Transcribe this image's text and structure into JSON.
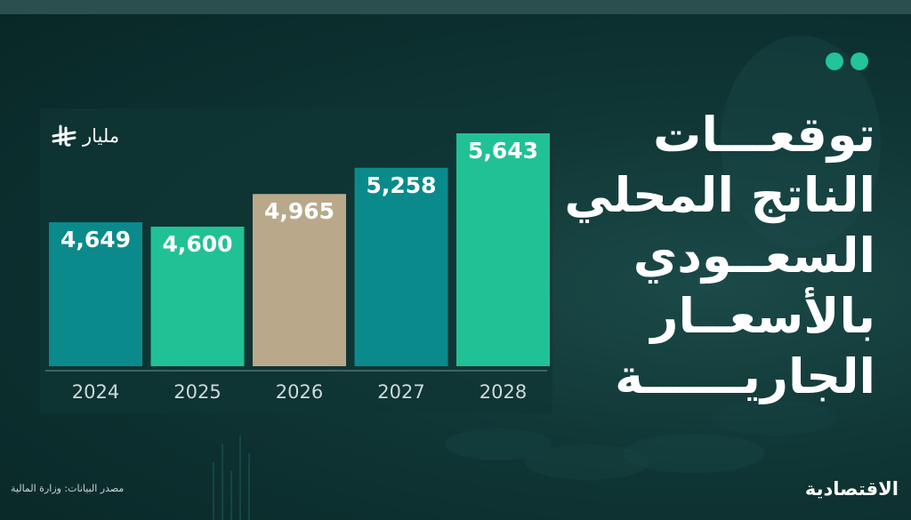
{
  "title_lines": [
    "توقعـــات",
    "الناتج المحلي",
    "السعــودي",
    "بالأسعــار",
    "الجاريــــــة"
  ],
  "unit_label": "مليار",
  "currency_icon": "saudi-riyal-icon",
  "source_note": "مصدر البيانات: وزارة المالية",
  "logo_text": "الاقتصادية",
  "colors": {
    "teal": "#0b8a8c",
    "green": "#21c196",
    "beige": "#b9a98a",
    "accent_dots": "#22c49a"
  },
  "chart_data": {
    "type": "bar",
    "categories": [
      "2024",
      "2025",
      "2026",
      "2027",
      "2028"
    ],
    "values": [
      4649,
      4600,
      4965,
      5258,
      5643
    ],
    "value_labels": [
      "4,649",
      "4,600",
      "4,965",
      "5,258",
      "5,643"
    ],
    "bar_colors": [
      "#0b8a8c",
      "#21c196",
      "#b9a98a",
      "#0b8a8c",
      "#21c196"
    ],
    "title": "",
    "xlabel": "",
    "ylabel": "",
    "grid": false,
    "legend": "none"
  }
}
